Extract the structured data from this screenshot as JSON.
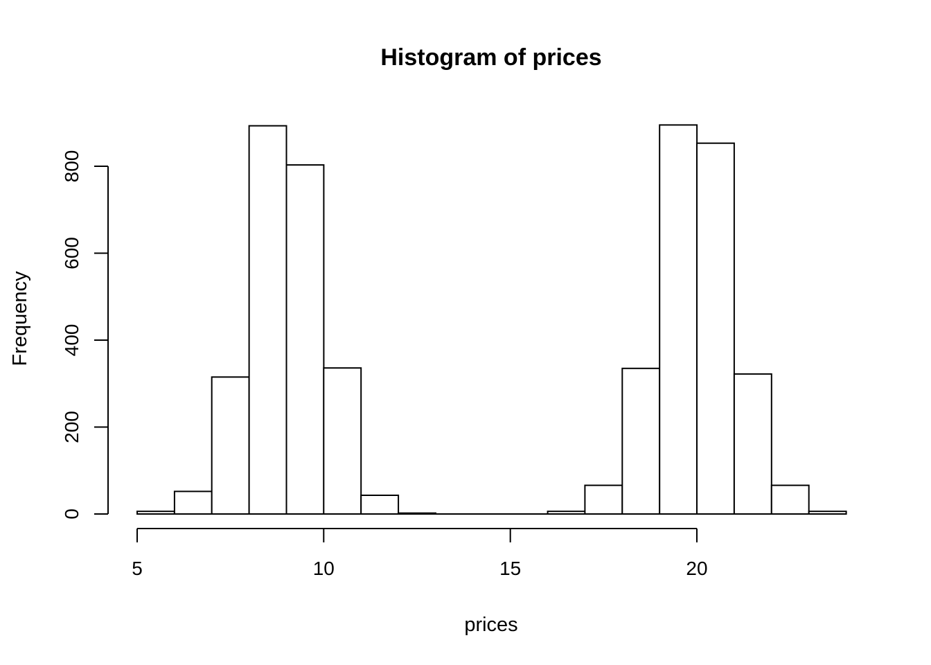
{
  "title": "Histogram of prices",
  "chart_data": {
    "type": "bar",
    "subtype": "histogram",
    "title": "Histogram of prices",
    "xlabel": "prices",
    "ylabel": "Frequency",
    "bin_edges": [
      5,
      6,
      7,
      8,
      9,
      10,
      11,
      12,
      13,
      14,
      15,
      16,
      17,
      18,
      19,
      20,
      21,
      22,
      23,
      24
    ],
    "counts": [
      6,
      52,
      315,
      893,
      803,
      336,
      43,
      2,
      0,
      0,
      0,
      6,
      66,
      335,
      895,
      853,
      322,
      66,
      6
    ],
    "x_ticks": [
      5,
      10,
      15,
      20
    ],
    "x_tick_labels": [
      "5",
      "10",
      "15",
      "20"
    ],
    "y_ticks": [
      0,
      200,
      400,
      600,
      800
    ],
    "y_tick_labels": [
      "0",
      "200",
      "400",
      "600",
      "800"
    ],
    "xlim": [
      5,
      24
    ],
    "ylim": [
      0,
      900
    ],
    "grid": "off",
    "legend": "none",
    "bar_fill": "#ffffff",
    "bar_stroke": "#000000",
    "axis_color": "#000000",
    "background": "#ffffff"
  }
}
